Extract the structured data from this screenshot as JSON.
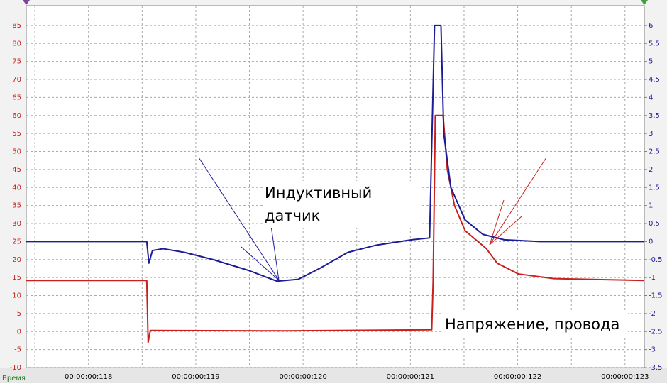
{
  "chart_data": {
    "type": "line",
    "x_label": "Время",
    "annotations": [
      "Индуктивный",
      "датчик",
      "Напряжение, провода"
    ],
    "xlim": [
      117.42,
      123.18
    ],
    "xticks": [
      {
        "value": 118,
        "label": "00:00:00:118"
      },
      {
        "value": 119,
        "label": "00:00:00:119"
      },
      {
        "value": 120,
        "label": "00:00:00:120"
      },
      {
        "value": 121,
        "label": "00:00:00:121"
      },
      {
        "value": 122,
        "label": "00:00:00:122"
      },
      {
        "value": 123,
        "label": "00:00:00:123"
      }
    ],
    "x_minor_ticks": [
      117.5,
      118.5,
      119.5,
      120.5,
      121.5,
      122.5
    ],
    "ylim": [
      -10,
      90.5
    ],
    "yticks": [
      -10,
      -5,
      0,
      5,
      10,
      15,
      20,
      25,
      30,
      35,
      40,
      45,
      50,
      55,
      60,
      65,
      70,
      75,
      80,
      85
    ],
    "y2lim": [
      -3.5,
      6.55
    ],
    "y2ticks": [
      -3.5,
      -3,
      -2.5,
      -2,
      -1.5,
      -1,
      -0.5,
      0,
      0.5,
      1,
      1.5,
      2,
      2.5,
      3,
      3.5,
      4,
      4.5,
      5,
      5.5,
      6
    ],
    "grid": true,
    "series": [
      {
        "color": "#c8201c",
        "x": [
          117.42,
          118.543,
          118.556,
          118.576,
          119.821,
          121.199,
          121.212,
          121.232,
          121.305,
          121.344,
          121.411,
          121.51,
          121.709,
          121.808,
          122.007,
          122.338,
          123.18
        ],
        "values": [
          14.2,
          14.2,
          -3,
          0.3,
          0.2,
          0.5,
          14,
          60,
          60,
          45,
          35,
          28,
          23,
          19,
          16,
          14.7,
          14.2
        ]
      },
      {
        "color": "#1c1c96",
        "axis": "y2",
        "x": [
          117.42,
          118.543,
          118.563,
          118.596,
          118.695,
          118.894,
          119.159,
          119.49,
          119.755,
          119.954,
          120.152,
          120.417,
          120.682,
          121.013,
          121.179,
          121.225,
          121.285,
          121.311,
          121.377,
          121.51,
          121.675,
          121.874,
          122.205,
          123.18
        ],
        "values": [
          0,
          0,
          -0.6,
          -0.25,
          -0.2,
          -0.3,
          -0.5,
          -0.8,
          -1.1,
          -1.05,
          -0.75,
          -0.3,
          -0.1,
          0.05,
          0.1,
          6,
          6,
          3,
          1.5,
          0.6,
          0.2,
          0.05,
          0,
          0
        ]
      }
    ]
  }
}
